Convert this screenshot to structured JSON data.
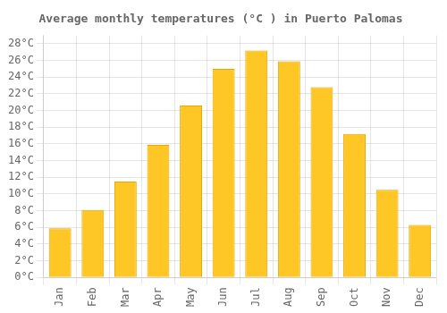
{
  "chart_data": {
    "type": "bar",
    "title": "Average monthly temperatures (°C ) in Puerto Palomas",
    "categories": [
      "Jan",
      "Feb",
      "Mar",
      "Apr",
      "May",
      "Jun",
      "Jul",
      "Aug",
      "Sep",
      "Oct",
      "Nov",
      "Dec"
    ],
    "values": [
      5.9,
      8.1,
      11.5,
      15.9,
      20.6,
      25.0,
      27.2,
      25.9,
      22.8,
      17.2,
      10.5,
      6.3
    ],
    "color": "#FFC726",
    "ylim": [
      0,
      29
    ],
    "yticks": [
      {
        "value": 0,
        "label": "0°C"
      },
      {
        "value": 2,
        "label": "2°C"
      },
      {
        "value": 4,
        "label": "4°C"
      },
      {
        "value": 6,
        "label": "6°C"
      },
      {
        "value": 8,
        "label": "8°C"
      },
      {
        "value": 10,
        "label": "10°C"
      },
      {
        "value": 12,
        "label": "12°C"
      },
      {
        "value": 14,
        "label": "14°C"
      },
      {
        "value": 16,
        "label": "16°C"
      },
      {
        "value": 18,
        "label": "18°C"
      },
      {
        "value": 20,
        "label": "20°C"
      },
      {
        "value": 22,
        "label": "22°C"
      },
      {
        "value": 24,
        "label": "24°C"
      },
      {
        "value": 26,
        "label": "26°C"
      },
      {
        "value": 28,
        "label": "28°C"
      }
    ],
    "grid": true
  }
}
